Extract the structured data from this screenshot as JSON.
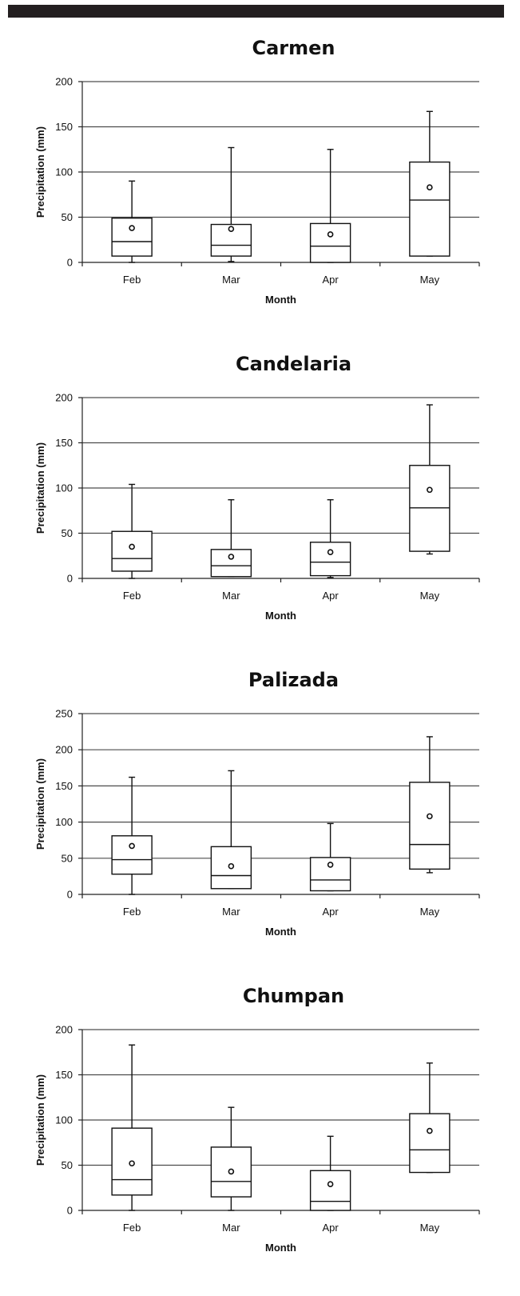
{
  "chart_data": [
    {
      "type": "box",
      "title": "Carmen",
      "xlabel": "Month",
      "ylabel": "Precipitation (mm)",
      "ylim": [
        0,
        200
      ],
      "yticks": [
        0,
        50,
        100,
        150,
        200
      ],
      "grid": true,
      "categories": [
        "Feb",
        "Mar",
        "Apr",
        "May"
      ],
      "boxes": [
        {
          "min": 0,
          "q1": 7,
          "median": 23,
          "q3": 49,
          "max": 90,
          "mean": 38
        },
        {
          "min": 1,
          "q1": 7,
          "median": 19,
          "q3": 42,
          "max": 127,
          "mean": 37
        },
        {
          "min": 0,
          "q1": 0,
          "median": 18,
          "q3": 43,
          "max": 125,
          "mean": 31
        },
        {
          "min": 7,
          "q1": 7,
          "median": 69,
          "q3": 111,
          "max": 167,
          "mean": 83
        }
      ]
    },
    {
      "type": "box",
      "title": "Candelaria",
      "xlabel": "Month",
      "ylabel": "Precipitation (mm)",
      "ylim": [
        0,
        200
      ],
      "yticks": [
        0,
        50,
        100,
        150,
        200
      ],
      "grid": true,
      "categories": [
        "Feb",
        "Mar",
        "Apr",
        "May"
      ],
      "boxes": [
        {
          "min": 0,
          "q1": 8,
          "median": 22,
          "q3": 52,
          "max": 104,
          "mean": 35
        },
        {
          "min": 2,
          "q1": 2,
          "median": 14,
          "q3": 32,
          "max": 87,
          "mean": 24
        },
        {
          "min": 1,
          "q1": 3,
          "median": 18,
          "q3": 40,
          "max": 87,
          "mean": 29
        },
        {
          "min": 27,
          "q1": 30,
          "median": 78,
          "q3": 125,
          "max": 192,
          "mean": 98
        }
      ]
    },
    {
      "type": "box",
      "title": "Palizada",
      "xlabel": "Month",
      "ylabel": "Precipitation (mm)",
      "ylim": [
        0,
        250
      ],
      "yticks": [
        0,
        50,
        100,
        150,
        200,
        250
      ],
      "grid": true,
      "categories": [
        "Feb",
        "Mar",
        "Apr",
        "May"
      ],
      "boxes": [
        {
          "min": 0,
          "q1": 28,
          "median": 48,
          "q3": 81,
          "max": 162,
          "mean": 67
        },
        {
          "min": 8,
          "q1": 8,
          "median": 26,
          "q3": 66,
          "max": 171,
          "mean": 39
        },
        {
          "min": 5,
          "q1": 5,
          "median": 20,
          "q3": 51,
          "max": 98,
          "mean": 41
        },
        {
          "min": 30,
          "q1": 35,
          "median": 69,
          "q3": 155,
          "max": 218,
          "mean": 108
        }
      ]
    },
    {
      "type": "box",
      "title": "Chumpan",
      "xlabel": "Month",
      "ylabel": "Precipitation (mm)",
      "ylim": [
        0,
        200
      ],
      "yticks": [
        0,
        50,
        100,
        150,
        200
      ],
      "grid": true,
      "categories": [
        "Feb",
        "Mar",
        "Apr",
        "May"
      ],
      "boxes": [
        {
          "min": 0,
          "q1": 17,
          "median": 34,
          "q3": 91,
          "max": 183,
          "mean": 52
        },
        {
          "min": 0,
          "q1": 15,
          "median": 32,
          "q3": 70,
          "max": 114,
          "mean": 43
        },
        {
          "min": 0,
          "q1": 0,
          "median": 10,
          "q3": 44,
          "max": 82,
          "mean": 29
        },
        {
          "min": 42,
          "q1": 42,
          "median": 67,
          "q3": 107,
          "max": 163,
          "mean": 88
        }
      ]
    }
  ]
}
